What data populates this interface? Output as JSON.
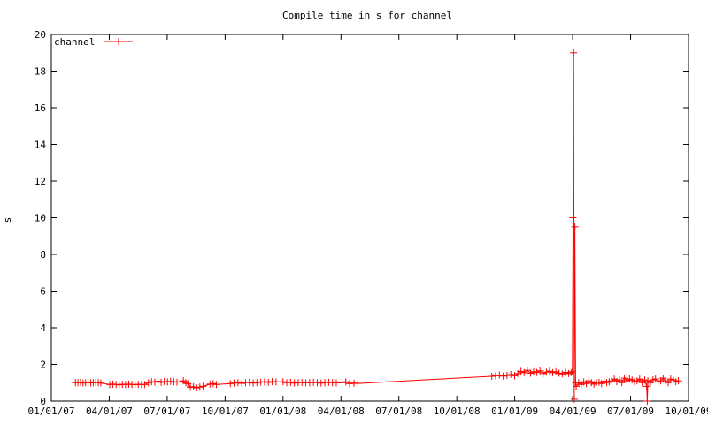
{
  "chart_data": {
    "type": "line",
    "title": "Compile time in s for channel",
    "xlabel": "",
    "ylabel": "s",
    "x_ticks": [
      "01/01/07",
      "04/01/07",
      "07/01/07",
      "10/01/07",
      "01/01/08",
      "04/01/08",
      "07/01/08",
      "10/01/08",
      "01/01/09",
      "04/01/09",
      "07/01/09",
      "10/01/09"
    ],
    "x_range": [
      "2007-01-01",
      "2009-10-01"
    ],
    "ylim": [
      0,
      20
    ],
    "y_ticks": [
      0,
      2,
      4,
      6,
      8,
      10,
      12,
      14,
      16,
      18,
      20
    ],
    "grid": false,
    "legend_position": "top-left",
    "series": [
      {
        "name": "channel",
        "color": "#ff0000",
        "marker": "plus",
        "x": [
          "2007-02-08",
          "2007-02-12",
          "2007-02-16",
          "2007-02-20",
          "2007-02-24",
          "2007-02-28",
          "2007-03-04",
          "2007-03-08",
          "2007-03-12",
          "2007-03-16",
          "2007-03-20",
          "2007-04-03",
          "2007-04-08",
          "2007-04-13",
          "2007-04-18",
          "2007-04-23",
          "2007-04-28",
          "2007-05-03",
          "2007-05-08",
          "2007-05-13",
          "2007-05-18",
          "2007-05-23",
          "2007-05-28",
          "2007-06-03",
          "2007-06-08",
          "2007-06-13",
          "2007-06-18",
          "2007-06-23",
          "2007-06-28",
          "2007-07-03",
          "2007-07-08",
          "2007-07-13",
          "2007-07-18",
          "2007-07-28",
          "2007-08-01",
          "2007-08-04",
          "2007-08-08",
          "2007-08-13",
          "2007-08-18",
          "2007-08-23",
          "2007-08-28",
          "2007-09-08",
          "2007-09-13",
          "2007-09-18",
          "2007-10-10",
          "2007-10-16",
          "2007-10-22",
          "2007-10-28",
          "2007-11-03",
          "2007-11-09",
          "2007-11-15",
          "2007-11-21",
          "2007-11-27",
          "2007-12-03",
          "2007-12-09",
          "2007-12-15",
          "2007-12-21",
          "2008-01-01",
          "2008-01-07",
          "2008-01-13",
          "2008-01-19",
          "2008-01-25",
          "2008-01-31",
          "2008-02-06",
          "2008-02-12",
          "2008-02-18",
          "2008-02-24",
          "2008-03-01",
          "2008-03-07",
          "2008-03-13",
          "2008-03-19",
          "2008-03-25",
          "2008-04-03",
          "2008-04-09",
          "2008-04-15",
          "2008-04-22",
          "2008-04-28",
          "2008-11-25",
          "2008-12-01",
          "2008-12-07",
          "2008-12-13",
          "2008-12-19",
          "2008-12-25",
          "2008-12-31",
          "2009-01-05",
          "2009-01-10",
          "2009-01-15",
          "2009-01-20",
          "2009-01-25",
          "2009-01-30",
          "2009-02-04",
          "2009-02-09",
          "2009-02-14",
          "2009-02-19",
          "2009-02-24",
          "2009-03-01",
          "2009-03-06",
          "2009-03-11",
          "2009-03-16",
          "2009-03-21",
          "2009-03-26",
          "2009-03-30",
          "2009-04-01",
          "2009-04-02",
          "2009-04-03",
          "2009-04-04",
          "2009-04-05",
          "2009-04-06",
          "2009-04-07",
          "2009-04-11",
          "2009-04-15",
          "2009-04-19",
          "2009-04-23",
          "2009-04-27",
          "2009-05-01",
          "2009-05-05",
          "2009-05-09",
          "2009-05-13",
          "2009-05-17",
          "2009-05-21",
          "2009-05-25",
          "2009-05-29",
          "2009-06-02",
          "2009-06-06",
          "2009-06-10",
          "2009-06-14",
          "2009-06-18",
          "2009-06-22",
          "2009-06-26",
          "2009-06-30",
          "2009-07-04",
          "2009-07-08",
          "2009-07-12",
          "2009-07-16",
          "2009-07-20",
          "2009-07-24",
          "2009-07-27",
          "2009-07-28",
          "2009-07-29",
          "2009-08-02",
          "2009-08-06",
          "2009-08-10",
          "2009-08-14",
          "2009-08-18",
          "2009-08-22",
          "2009-08-26",
          "2009-08-30",
          "2009-09-03",
          "2009-09-07",
          "2009-09-11",
          "2009-09-15"
        ],
        "y": [
          1.0,
          1.0,
          1.02,
          0.98,
          1.0,
          1.01,
          0.99,
          1.0,
          1.02,
          1.0,
          0.98,
          0.9,
          0.92,
          0.9,
          0.88,
          0.91,
          0.9,
          0.92,
          0.9,
          0.89,
          0.91,
          0.9,
          0.9,
          1.0,
          1.05,
          1.03,
          1.08,
          1.02,
          1.06,
          1.04,
          1.07,
          1.05,
          1.03,
          1.1,
          1.0,
          0.95,
          0.75,
          0.78,
          0.72,
          0.76,
          0.8,
          0.92,
          0.95,
          0.9,
          0.95,
          0.98,
          1.0,
          0.96,
          1.0,
          1.02,
          0.98,
          1.0,
          1.03,
          1.05,
          1.02,
          1.06,
          1.04,
          1.05,
          1.0,
          1.02,
          0.98,
          1.0,
          1.01,
          0.99,
          1.0,
          1.02,
          1.0,
          0.98,
          1.0,
          1.02,
          1.0,
          0.99,
          1.0,
          1.05,
          0.95,
          0.98,
          0.96,
          1.35,
          1.38,
          1.42,
          1.36,
          1.4,
          1.45,
          1.38,
          1.5,
          1.62,
          1.55,
          1.68,
          1.52,
          1.6,
          1.56,
          1.65,
          1.5,
          1.58,
          1.63,
          1.55,
          1.6,
          1.52,
          1.48,
          1.57,
          1.5,
          1.55,
          1.6,
          10.0,
          19.0,
          0.1,
          9.5,
          1.0,
          0.8,
          1.0,
          0.9,
          1.05,
          0.95,
          1.1,
          1.0,
          0.92,
          1.0,
          1.02,
          0.95,
          1.08,
          1.0,
          1.05,
          1.1,
          1.2,
          1.05,
          1.15,
          1.0,
          1.25,
          1.1,
          1.2,
          1.15,
          1.05,
          1.1,
          1.2,
          1.0,
          1.15,
          0.8,
          0.0,
          1.1,
          1.0,
          1.15,
          1.2,
          1.05,
          1.1,
          1.25,
          1.1,
          1.0,
          1.2,
          1.15,
          1.05,
          1.1
        ]
      }
    ]
  }
}
